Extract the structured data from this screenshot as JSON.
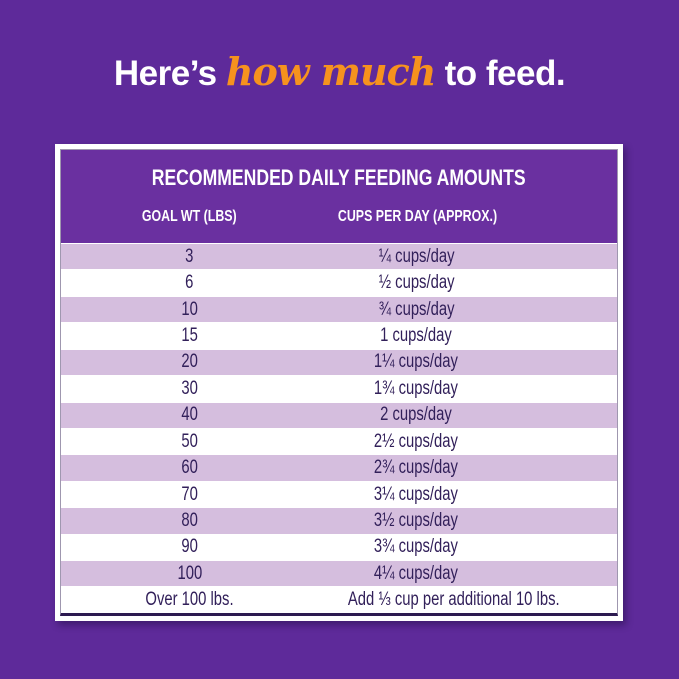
{
  "heading": {
    "prefix": "Here’s ",
    "highlight": "how much",
    "suffix": " to feed."
  },
  "table": {
    "title": "RECOMMENDED DAILY FEEDING AMOUNTS",
    "columns": [
      "GOAL WT (LBS)",
      "CUPS PER DAY (APPROX.)"
    ],
    "rows": [
      {
        "weight": "3",
        "cups": "¼ cups/day"
      },
      {
        "weight": "6",
        "cups": "½ cups/day"
      },
      {
        "weight": "10",
        "cups": "¾ cups/day"
      },
      {
        "weight": "15",
        "cups": "1 cups/day"
      },
      {
        "weight": "20",
        "cups": "1¼ cups/day"
      },
      {
        "weight": "30",
        "cups": "1¾ cups/day"
      },
      {
        "weight": "40",
        "cups": "2 cups/day"
      },
      {
        "weight": "50",
        "cups": "2½ cups/day"
      },
      {
        "weight": "60",
        "cups": "2¾ cups/day"
      },
      {
        "weight": "70",
        "cups": "3¼ cups/day"
      },
      {
        "weight": "80",
        "cups": "3½ cups/day"
      },
      {
        "weight": "90",
        "cups": "3¾ cups/day"
      },
      {
        "weight": "100",
        "cups": "4¼ cups/day"
      },
      {
        "weight": "Over 100 lbs.",
        "cups": "Add ⅓ cup per additional 10 lbs."
      }
    ]
  },
  "colors": {
    "background": "#5e2a9a",
    "table_header_bg": "#6a30a0",
    "row_alt_bg": "#d5bede",
    "row_bg": "#ffffff",
    "row_text": "#32205a",
    "heading_text": "#ffffff",
    "heading_highlight": "#f6921e",
    "table_border_dark": "#2c1a50",
    "card_bg": "#ffffff"
  },
  "chart_data": {
    "type": "table",
    "title": "RECOMMENDED DAILY FEEDING AMOUNTS",
    "columns": [
      "GOAL WT (LBS)",
      "CUPS PER DAY (APPROX.)"
    ],
    "goal_weights_lbs": [
      3,
      6,
      10,
      15,
      20,
      30,
      40,
      50,
      60,
      70,
      80,
      90,
      100
    ],
    "cups_per_day": [
      0.25,
      0.5,
      0.75,
      1,
      1.25,
      1.75,
      2,
      2.5,
      2.75,
      3.25,
      3.5,
      3.75,
      4.25
    ],
    "over_100_note": "Add ⅓ cup per additional 10 lbs.",
    "legend_position": "none",
    "grid": false
  }
}
